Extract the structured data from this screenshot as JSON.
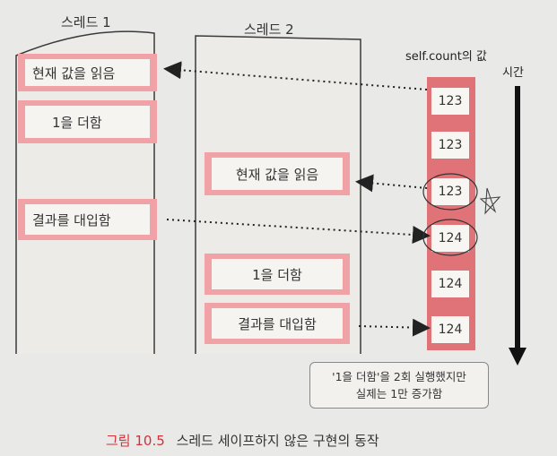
{
  "thread1": {
    "title": "스레드 1",
    "steps": [
      "현재 값을 읽음",
      "1을 더함",
      "결과를 대입함"
    ]
  },
  "thread2": {
    "title": "스레드 2",
    "steps": [
      "현재 값을 읽음",
      "1을 더함",
      "결과를 대입함"
    ]
  },
  "count_column": {
    "header": "self.count의 값",
    "values": [
      "123",
      "123",
      "123",
      "124",
      "124",
      "124"
    ]
  },
  "time_label": "시간",
  "note": {
    "line1": "'1을 더함'을 2회 실행했지만",
    "line2": "실제는 1만 증가함"
  },
  "caption": {
    "label": "그림 10.5",
    "text": "스레드 세이프하지 않은 구현의 동작"
  },
  "colors": {
    "accent_red": "#e07378",
    "step_pink": "#f0a2a6",
    "caption_red": "#d0313b"
  }
}
